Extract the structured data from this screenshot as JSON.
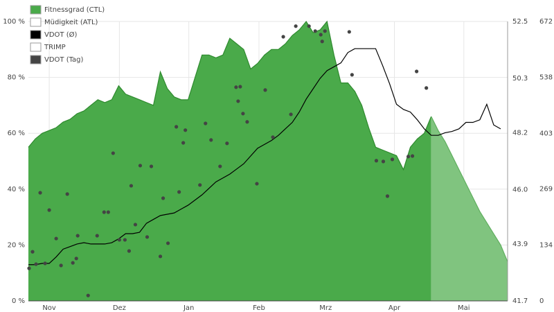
{
  "chart_data": {
    "type": "area",
    "xlim": [
      0,
      69
    ],
    "xticks": [
      {
        "value": 3,
        "label": "Nov"
      },
      {
        "value": 13.1,
        "label": "Dez"
      },
      {
        "value": 23.1,
        "label": "Jan"
      },
      {
        "value": 33.2,
        "label": "Feb"
      },
      {
        "value": 42.8,
        "label": "Mrz"
      },
      {
        "value": 52.7,
        "label": "Apr"
      },
      {
        "value": 62.7,
        "label": "Mai"
      }
    ],
    "ylim": [
      0,
      100
    ],
    "yticks": [
      {
        "value": 0,
        "label": "0 %"
      },
      {
        "value": 20,
        "label": "20 %"
      },
      {
        "value": 40,
        "label": "40 %"
      },
      {
        "value": 60,
        "label": "60 %"
      },
      {
        "value": 80,
        "label": "80 %"
      },
      {
        "value": 100,
        "label": "100 %"
      }
    ],
    "y2lim": [
      41.7,
      52.5
    ],
    "y2ticks": [
      41.7,
      43.9,
      {
        "value": 46,
        "label": "46.0"
      },
      48.2,
      50.3,
      52.5
    ],
    "y3lim": [
      0,
      672
    ],
    "y3ticks": [
      0,
      134,
      269,
      403,
      538,
      672
    ],
    "grid": true,
    "legend": "top-left",
    "series": [
      {
        "name": "Fitnessgrad (CTL)",
        "type": "area",
        "color": "#4aaa4a",
        "forecast_color": "#80c47f",
        "forecast_start": 58,
        "values": [
          55,
          58,
          60,
          61,
          62,
          64,
          65,
          67,
          68,
          70,
          72,
          71,
          72,
          77,
          74,
          73,
          72,
          71,
          70,
          82,
          76,
          73,
          72,
          72,
          80,
          88,
          88,
          87,
          88,
          94,
          92,
          90,
          83,
          85,
          88,
          90,
          90,
          92,
          95,
          97,
          100,
          96,
          97,
          100,
          88,
          78,
          78,
          75,
          70,
          62,
          55,
          54,
          53,
          52,
          47,
          55,
          58,
          60,
          66,
          61,
          57,
          52,
          47,
          42,
          37,
          32,
          28,
          24,
          20,
          14
        ]
      },
      {
        "name": "Müdigkeit (ATL)",
        "type": "area",
        "color": "#ffffff",
        "values": []
      },
      {
        "name": "VDOT (Ø)",
        "type": "line",
        "axis": "y2",
        "color": "#000000",
        "values": [
          43.1,
          43.1,
          43.15,
          43.15,
          43.4,
          43.7,
          43.8,
          43.9,
          43.95,
          43.9,
          43.9,
          43.9,
          43.95,
          44.1,
          44.3,
          44.3,
          44.35,
          44.7,
          44.85,
          45.0,
          45.05,
          45.1,
          45.25,
          45.4,
          45.6,
          45.8,
          46.05,
          46.3,
          46.45,
          46.6,
          46.8,
          47.0,
          47.3,
          47.6,
          47.75,
          47.9,
          48.1,
          48.35,
          48.6,
          49.0,
          49.5,
          49.9,
          50.3,
          50.6,
          50.75,
          50.9,
          51.3,
          51.45,
          51.45,
          51.45,
          51.45,
          50.8,
          50.1,
          49.3,
          49.1,
          49.0,
          48.7,
          48.35,
          48.1,
          48.1,
          48.2,
          48.25,
          48.35,
          48.6,
          48.6,
          48.7,
          49.3,
          48.5,
          48.35,
          null
        ]
      },
      {
        "name": "TRIMP",
        "type": "bar",
        "axis": "y3",
        "color": "#ffffff",
        "values": []
      },
      {
        "name": "VDOT (Tag)",
        "type": "scatter",
        "axis": "y2",
        "color": "#444444",
        "x": [
          0.1,
          0.6,
          1.1,
          1.7,
          2.4,
          3.0,
          4.0,
          4.7,
          5.6,
          6.4,
          6.9,
          7.1,
          8.6,
          9.9,
          10.9,
          11.5,
          12.2,
          13.1,
          13.9,
          14.5,
          14.8,
          15.4,
          16.1,
          17.1,
          17.7,
          19.0,
          19.4,
          20.1,
          21.3,
          21.7,
          22.3,
          22.6,
          24.7,
          25.5,
          26.3,
          27.6,
          28.6,
          29.9,
          30.2,
          30.5,
          30.9,
          31.5,
          32.9,
          34.1,
          35.2,
          36.7,
          37.8,
          38.5,
          40.4,
          41.3,
          42.1,
          42.3,
          42.7,
          46.2,
          46.6,
          50.1,
          51.1,
          51.7,
          52.4,
          54.7,
          55.3,
          55.9,
          57.3
        ],
        "values": [
          42.96,
          43.6,
          43.12,
          45.88,
          43.15,
          45.21,
          44.11,
          43.07,
          45.83,
          43.17,
          43.34,
          44.22,
          41.91,
          44.22,
          45.13,
          45.13,
          47.41,
          44.06,
          44.06,
          43.63,
          46.15,
          44.65,
          46.93,
          44.17,
          46.9,
          43.42,
          45.67,
          43.93,
          48.43,
          45.91,
          47.81,
          48.3,
          46.18,
          48.56,
          47.92,
          46.9,
          47.79,
          49.96,
          49.42,
          49.98,
          48.94,
          48.62,
          46.23,
          49.85,
          48.03,
          51.91,
          48.91,
          52.32,
          52.32,
          52.13,
          51.99,
          51.73,
          52.13,
          52.1,
          50.44,
          47.12,
          47.09,
          45.75,
          47.17,
          47.28,
          47.3,
          50.57,
          49.93
        ]
      }
    ]
  }
}
